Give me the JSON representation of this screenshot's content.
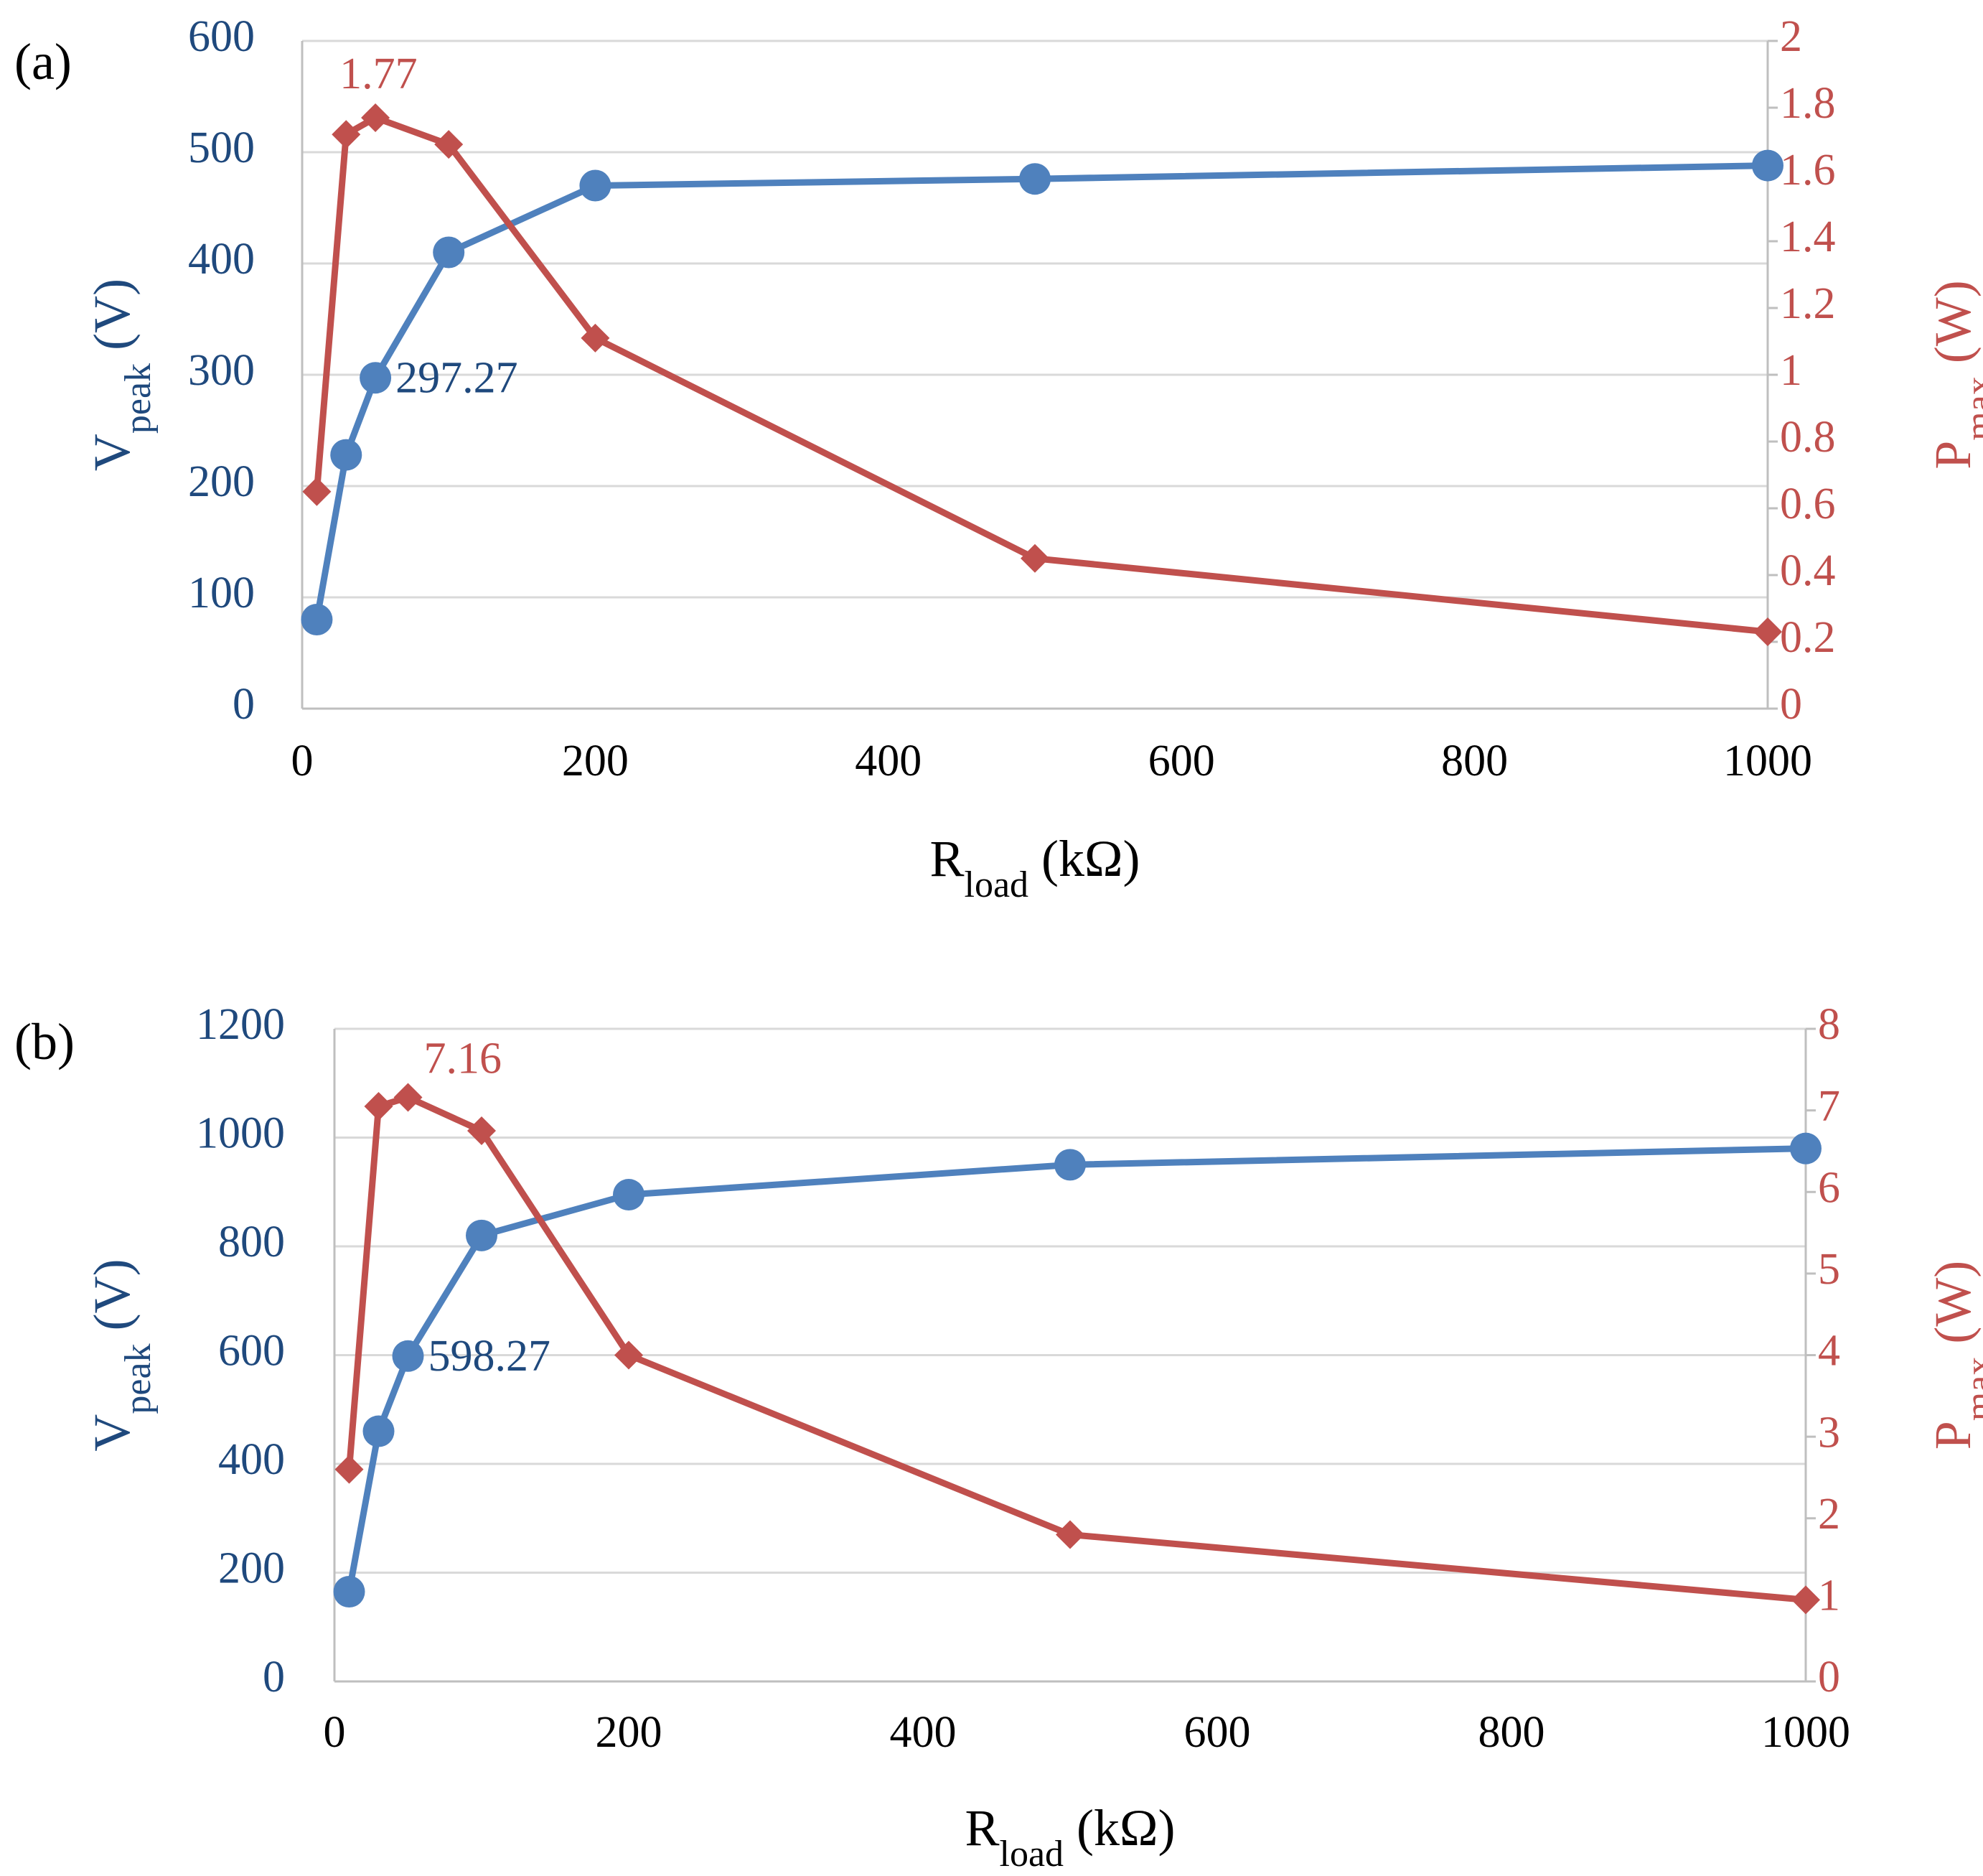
{
  "colors": {
    "vpeak": "#4f81bd",
    "pmax": "#c0504d",
    "vpeak_text": "#1f497d",
    "pmax_text": "#c0504d",
    "grid": "#d9d9d9",
    "axis": "#bfbfbf"
  },
  "chart_data": [
    {
      "panel_label": "(a)",
      "type": "line",
      "x": [
        10,
        30,
        50,
        100,
        200,
        500,
        1000
      ],
      "series": [
        {
          "name": "Vpeak",
          "axis": "left",
          "marker": "circle",
          "values": [
            80,
            228,
            297.27,
            410,
            470,
            476,
            488
          ],
          "label": {
            "index": 2,
            "text": "297.27"
          }
        },
        {
          "name": "Pmax",
          "axis": "right",
          "marker": "diamond",
          "values": [
            0.65,
            1.72,
            1.77,
            1.69,
            1.11,
            0.45,
            0.23
          ],
          "label": {
            "index": 2,
            "text": "1.77"
          }
        }
      ],
      "xlim": [
        0,
        1000
      ],
      "xticks": [
        "0",
        "200",
        "400",
        "600",
        "800",
        "1000"
      ],
      "ylim_left": [
        0,
        600
      ],
      "yticks_left": [
        "0",
        "100",
        "200",
        "300",
        "400",
        "500",
        "600"
      ],
      "ylim_right": [
        0,
        2
      ],
      "yticks_right": [
        "0",
        "0.2",
        "0.4",
        "0.6",
        "0.8",
        "1",
        "1.2",
        "1.4",
        "1.6",
        "1.8",
        "2"
      ],
      "xlabel": {
        "main": "R",
        "sub": "load",
        "unit": " (kΩ)"
      },
      "ylabel_left": {
        "main": "V",
        "sub": "peak",
        "unit": " (V)"
      },
      "ylabel_right": {
        "main": "P",
        "sub": "max",
        "unit": " (W)"
      },
      "grid": true
    },
    {
      "panel_label": "(b)",
      "type": "line",
      "x": [
        10,
        30,
        50,
        100,
        200,
        500,
        1000
      ],
      "series": [
        {
          "name": "Vpeak",
          "axis": "left",
          "marker": "circle",
          "values": [
            165,
            460,
            598.27,
            820,
            895,
            950,
            980
          ],
          "label": {
            "index": 2,
            "text": "598.27"
          }
        },
        {
          "name": "Pmax",
          "axis": "right",
          "marker": "diamond",
          "values": [
            2.6,
            7.05,
            7.16,
            6.75,
            4.0,
            1.8,
            1.0
          ],
          "label": {
            "index": 2,
            "text": "7.16"
          }
        }
      ],
      "xlim": [
        0,
        1000
      ],
      "xticks": [
        "0",
        "200",
        "400",
        "600",
        "800",
        "1000"
      ],
      "ylim_left": [
        0,
        1200
      ],
      "yticks_left": [
        "0",
        "200",
        "400",
        "600",
        "800",
        "1000",
        "1200"
      ],
      "ylim_right": [
        0,
        8
      ],
      "yticks_right": [
        "0",
        "1",
        "2",
        "3",
        "4",
        "5",
        "6",
        "7",
        "8"
      ],
      "xlabel": {
        "main": "R",
        "sub": "load",
        "unit": " (kΩ)"
      },
      "ylabel_left": {
        "main": "V",
        "sub": "peak",
        "unit": " (V)"
      },
      "ylabel_right": {
        "main": "P",
        "sub": "max",
        "unit": " (W)"
      },
      "grid": true
    }
  ]
}
